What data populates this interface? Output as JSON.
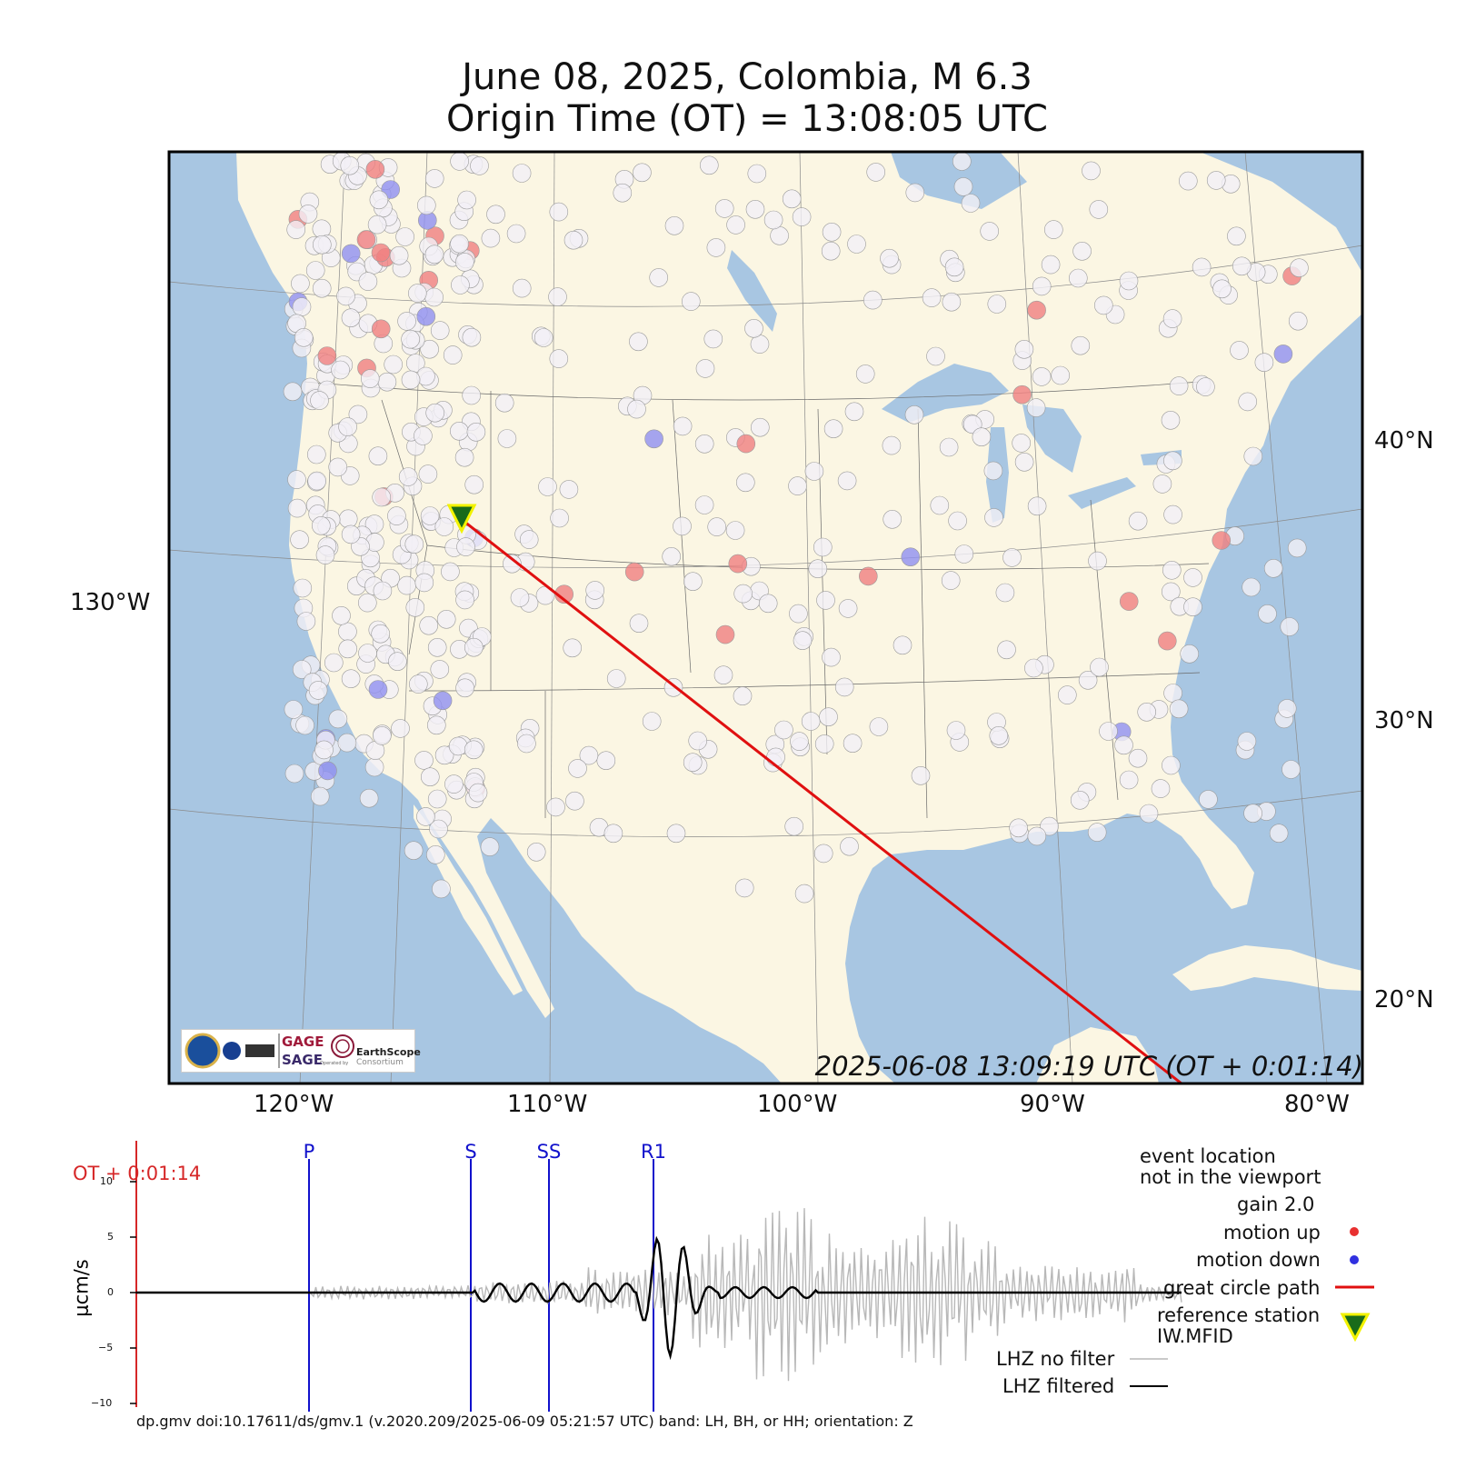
{
  "title": {
    "line1": "June 08, 2025, Colombia, M 6.3",
    "line2": "Origin Time (OT) = 13:08:05 UTC"
  },
  "map": {
    "timestamp": "2025-06-08 13:09:19 UTC (OT + 0:01:14)",
    "lat_labels": [
      "40°N",
      "30°N",
      "20°N"
    ],
    "lon_labels_bottom": [
      "120°W",
      "110°W",
      "100°W",
      "90°W",
      "80°W"
    ],
    "lon_label_left": "130°W",
    "colors": {
      "ocean": "#a8c6e2",
      "land": "#fbf6e3",
      "station": "#f3f0f6",
      "motion_up": "#f08080",
      "motion_down": "#9090f0",
      "great_circle": "#e01010",
      "ref_station_fill": "#1a6b1a",
      "ref_station_edge": "#f2f200"
    },
    "logo": {
      "gage": "GAGE",
      "sage": "SAGE",
      "earthscope": "EarthScope",
      "consortium": "Consortium",
      "operated_by": "Operated by"
    }
  },
  "seismogram": {
    "ot_label": "OT + 0:01:14",
    "ylabel": "μcm/s",
    "yticks": [
      "10",
      "5",
      "0",
      "−5",
      "−10"
    ],
    "phases": [
      "P",
      "S",
      "SS",
      "R1"
    ]
  },
  "legend": {
    "event_location": "event location",
    "not_in_viewport": "not in the viewport",
    "gain": "gain  2.0",
    "motion_up": "motion up",
    "motion_down": "motion down",
    "great_circle": "great circle path",
    "reference_station": "reference station",
    "station_code": "IW.MFID",
    "lhz_no_filter": "LHZ no filter",
    "lhz_filtered": "LHZ filtered"
  },
  "footer": "dp.gmv doi:10.17611/ds/gmv.1 (v.2020.209/2025-06-09 05:21:57 UTC) band: LH, BH, or HH; orientation: Z"
}
